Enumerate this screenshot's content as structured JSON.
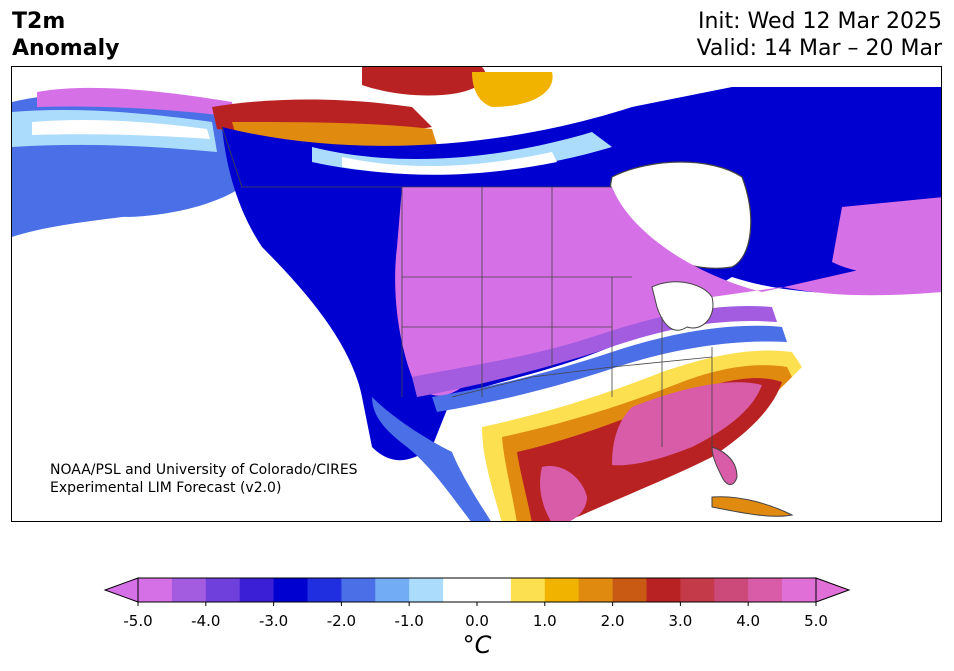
{
  "header": {
    "title_line1": "T2m",
    "title_line2": "Anomaly",
    "init": "Init: Wed 12 Mar 2025",
    "valid": "Valid: 14 Mar – 20 Mar"
  },
  "credit": {
    "line1": "NOAA/PSL and University of Colorado/CIRES",
    "line2": "Experimental LIM Forecast (v2.0)"
  },
  "colorbar": {
    "ticks": [
      "-5.0",
      "-4.0",
      "-3.0",
      "-2.0",
      "-1.0",
      "0.0",
      "1.0",
      "2.0",
      "3.0",
      "4.0",
      "5.0"
    ],
    "unit": "°C",
    "colors": [
      "#d670e6",
      "#a35be0",
      "#7040dc",
      "#3a1fd6",
      "#0000d0",
      "#2030e0",
      "#4a6fe6",
      "#72acf4",
      "#acdcfc",
      "#ffffff",
      "#ffffff",
      "#fde050",
      "#f2b300",
      "#e08a10",
      "#c85a14",
      "#b82222",
      "#c43a48",
      "#cc4a7a",
      "#d85ca8",
      "#e070d8"
    ],
    "under_color": "#d670e6",
    "over_color": "#e070d8"
  },
  "map": {
    "palette": {
      "purple": "#d670e6",
      "violet": "#a35be0",
      "deep_blue": "#0000d0",
      "blue": "#4a6fe6",
      "light_blue": "#acdcfc",
      "white": "#ffffff",
      "yellow": "#fde050",
      "orange": "#e08a10",
      "red": "#b82222",
      "pink": "#d85ca8",
      "land_outline": "#444444"
    }
  }
}
